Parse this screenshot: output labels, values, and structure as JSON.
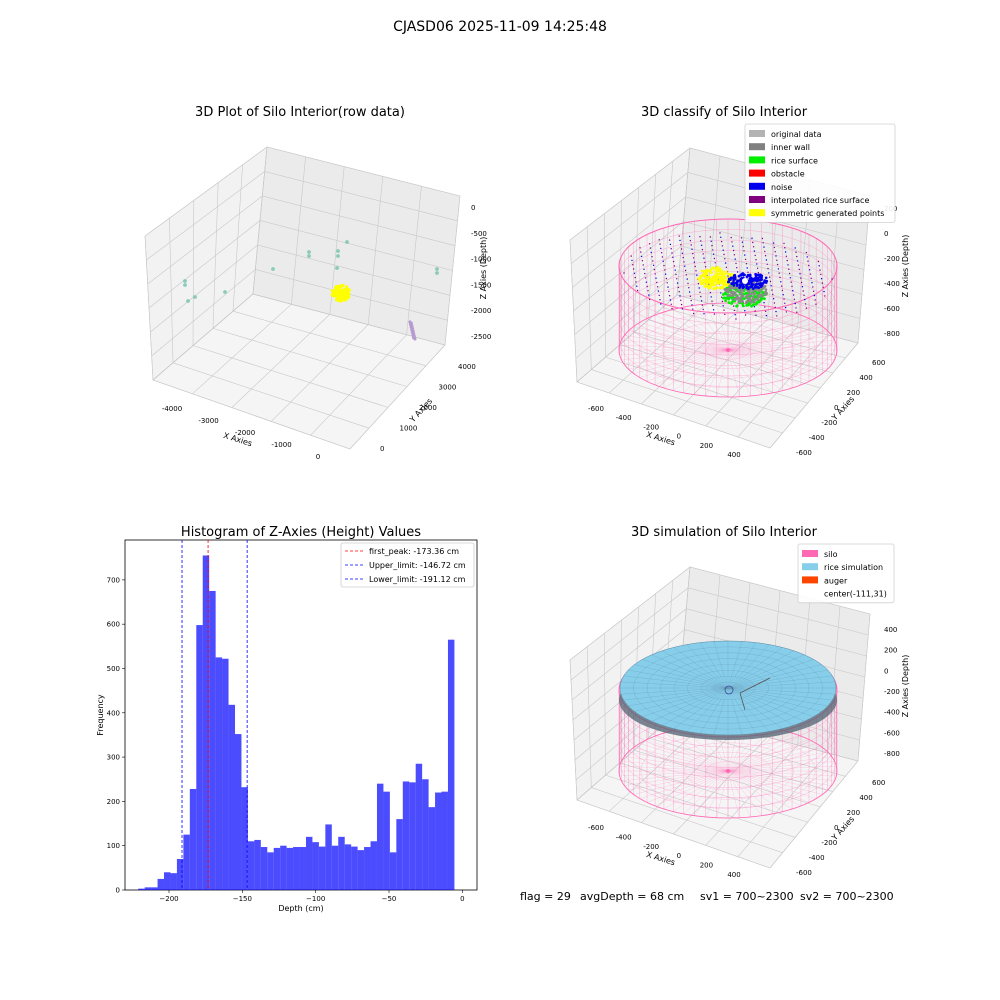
{
  "figure": {
    "suptitle": "CJASD06 2025-11-09 14:25:48",
    "status_text": {
      "flag": "flag = 29",
      "avg_depth": "avgDepth = 68 cm",
      "sv1": "sv1 = 700~2300",
      "sv2": "sv2 = 700~2300"
    }
  },
  "colors": {
    "teal_points": "#7fc7b3",
    "yellow": "#ffff00",
    "lavender": "#b69ad0",
    "green": "#00ee00",
    "blue": "#0000ee",
    "gray": "#8a8a8a",
    "purple": "#800080",
    "silo_pink": "#ff69b4",
    "rice_blue": "#87ceeb",
    "auger_orange": "#ff4500",
    "hist_blue": "#0000ff",
    "peak_red": "#ff0000"
  },
  "chart_data": [
    {
      "type": "scatter",
      "projection": "3d",
      "title": "3D Plot of Silo Interior(row data)",
      "xlabel": "X Axies",
      "ylabel": "Y Axies",
      "zlabel": "Z Axies (Depth)",
      "xticks": [
        "-4000",
        "-3000",
        "-2000",
        "-1000",
        "0"
      ],
      "yticks": [
        "0",
        "1000",
        "2000",
        "3000",
        "4000"
      ],
      "zticks": [
        "0",
        "-500",
        "-1000",
        "-1500",
        "-2000",
        "-2500"
      ],
      "grid": true
    },
    {
      "type": "scatter",
      "projection": "3d",
      "title": "3D classify of Silo Interior",
      "xlabel": "X Axies",
      "ylabel": "Y Axies",
      "zlabel": "Z Axies (Depth)",
      "xticks": [
        "-600",
        "-400",
        "-200",
        "0",
        "200",
        "400"
      ],
      "yticks": [
        "-600",
        "-400",
        "-200",
        "0",
        "200",
        "400",
        "600"
      ],
      "zticks": [
        "200",
        "0",
        "-200",
        "-400",
        "-600",
        "-800"
      ],
      "legend_position": "top-right",
      "legend": [
        {
          "label": "original data",
          "color": "#b3b3b3"
        },
        {
          "label": "inner wall",
          "color": "#808080"
        },
        {
          "label": "rice surface",
          "color": "#00ee00"
        },
        {
          "label": "obstacle",
          "color": "#ff0000"
        },
        {
          "label": "noise",
          "color": "#0000ee"
        },
        {
          "label": "interpolated rice surface",
          "color": "#800080"
        },
        {
          "label": "symmetric generated points",
          "color": "#ffff00"
        }
      ],
      "grid": true
    },
    {
      "type": "bar",
      "title": "Histogram of Z-Axies (Height) Values",
      "xlabel": "Depth (cm)",
      "ylabel": "Frequency",
      "xlim": [
        -230,
        10
      ],
      "ylim": [
        0,
        790
      ],
      "xticks": [
        -200,
        -150,
        -100,
        -50,
        0
      ],
      "yticks": [
        0,
        100,
        200,
        300,
        400,
        500,
        600,
        700
      ],
      "bin_start": -221,
      "bin_width": 4.4,
      "values": [
        3,
        6,
        6,
        25,
        40,
        38,
        70,
        125,
        228,
        598,
        755,
        675,
        525,
        522,
        418,
        352,
        232,
        110,
        113,
        97,
        85,
        95,
        100,
        95,
        97,
        97,
        120,
        108,
        98,
        148,
        100,
        120,
        103,
        98,
        90,
        97,
        110,
        240,
        222,
        85,
        160,
        245,
        243,
        285,
        250,
        187,
        220,
        222,
        565
      ],
      "vlines": [
        {
          "label": "first_peak: -173.36 cm",
          "x": -173.36,
          "color": "#ff0000"
        },
        {
          "label": "Upper_limit: -146.72 cm",
          "x": -146.72,
          "color": "#0000ff"
        },
        {
          "label": "Lower_limit: -191.12 cm",
          "x": -191.12,
          "color": "#0000ff"
        }
      ],
      "legend_position": "top-right"
    },
    {
      "type": "surface",
      "projection": "3d",
      "title": "3D simulation of Silo Interior",
      "xlabel": "X Axies",
      "ylabel": "Y Axies",
      "zlabel": "Z Axies (Depth)",
      "xticks": [
        "-600",
        "-400",
        "-200",
        "0",
        "200",
        "400"
      ],
      "yticks": [
        "-600",
        "-400",
        "-200",
        "0",
        "200",
        "400",
        "600"
      ],
      "zticks": [
        "400",
        "200",
        "0",
        "-200",
        "-400",
        "-600",
        "-800"
      ],
      "legend_position": "top-right",
      "legend": [
        {
          "label": "silo",
          "color": "#ff69b4"
        },
        {
          "label": "rice simulation",
          "color": "#87ceeb"
        },
        {
          "label": "auger",
          "color": "#ff4500"
        },
        {
          "label": "center(-111,31)",
          "color": ""
        }
      ],
      "grid": true
    }
  ]
}
